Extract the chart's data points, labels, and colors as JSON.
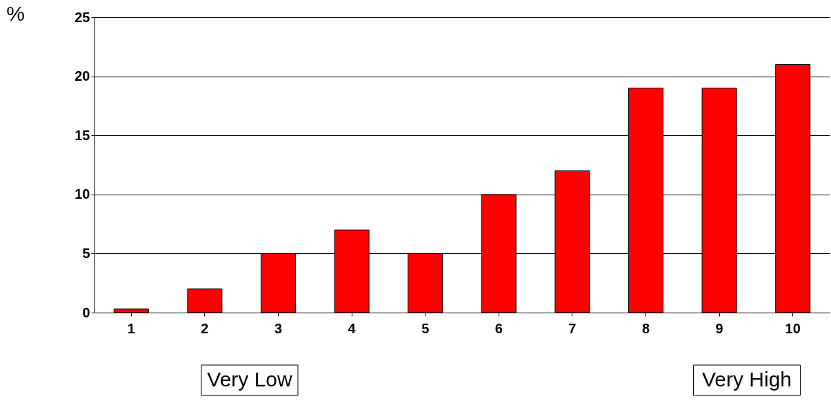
{
  "chart_data": {
    "type": "bar",
    "ylabel": "%",
    "categories": [
      "1",
      "2",
      "3",
      "4",
      "5",
      "6",
      "7",
      "8",
      "9",
      "10"
    ],
    "values": [
      0.3,
      2,
      5,
      7,
      5,
      10,
      12,
      19,
      19,
      21
    ],
    "color": "#ff0000",
    "ylim": [
      0,
      25
    ],
    "yticks": [
      0,
      5,
      10,
      15,
      20,
      25
    ],
    "grid": "y",
    "annotations": [
      "Very Low",
      "Very High"
    ]
  }
}
